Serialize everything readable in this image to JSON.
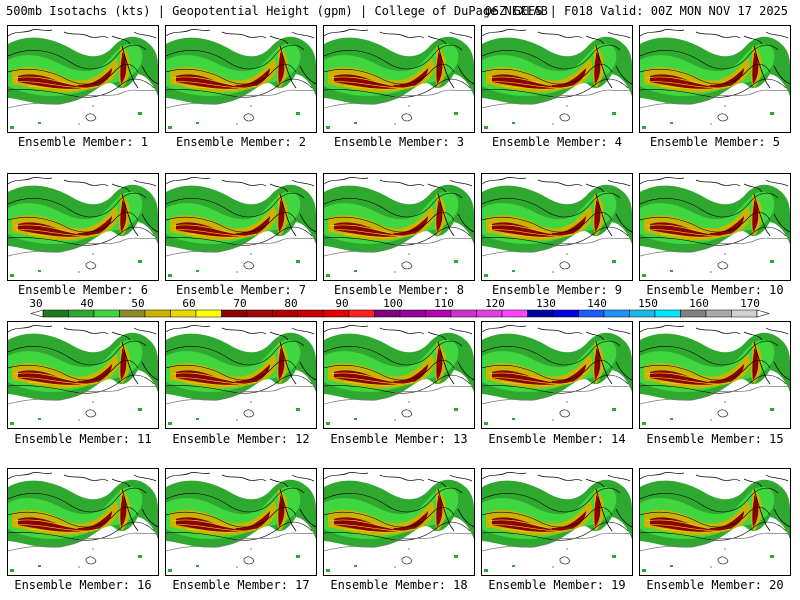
{
  "title": {
    "left": "500mb Isotachs (kts) | Geopotential Height (gpm) | College of DuPage NEXLAB",
    "right": "06Z GEFS | F018 Valid: 00Z MON NOV 17 2025"
  },
  "panels": [
    {
      "label": "Ensemble Member: 1"
    },
    {
      "label": "Ensemble Member: 2"
    },
    {
      "label": "Ensemble Member: 3"
    },
    {
      "label": "Ensemble Member: 4"
    },
    {
      "label": "Ensemble Member: 5"
    },
    {
      "label": "Ensemble Member: 6"
    },
    {
      "label": "Ensemble Member: 7"
    },
    {
      "label": "Ensemble Member: 8"
    },
    {
      "label": "Ensemble Member: 9"
    },
    {
      "label": "Ensemble Member: 10"
    },
    {
      "label": "Ensemble Member: 11"
    },
    {
      "label": "Ensemble Member: 12"
    },
    {
      "label": "Ensemble Member: 13"
    },
    {
      "label": "Ensemble Member: 14"
    },
    {
      "label": "Ensemble Member: 15"
    },
    {
      "label": "Ensemble Member: 16"
    },
    {
      "label": "Ensemble Member: 17"
    },
    {
      "label": "Ensemble Member: 18"
    },
    {
      "label": "Ensemble Member: 19"
    },
    {
      "label": "Ensemble Member: 20"
    }
  ],
  "colorbar": {
    "ticks": [
      "30",
      "40",
      "50",
      "60",
      "70",
      "80",
      "90",
      "100",
      "110",
      "120",
      "130",
      "140",
      "150",
      "160",
      "170"
    ],
    "colors": [
      "#1e7a1e",
      "#2ea82e",
      "#3fd63f",
      "#8b8b2e",
      "#c8b400",
      "#e6d800",
      "#ffff00",
      "#8b0000",
      "#9e0a0a",
      "#b00000",
      "#c80000",
      "#e00000",
      "#ff2020",
      "#800080",
      "#990099",
      "#b000b0",
      "#cc33cc",
      "#e040e0",
      "#ff44ff",
      "#0000a0",
      "#0000e0",
      "#1a5aff",
      "#2090ff",
      "#1ab8e6",
      "#00e5ff",
      "#808080",
      "#a8a8a8",
      "#d0d0d0"
    ]
  }
}
